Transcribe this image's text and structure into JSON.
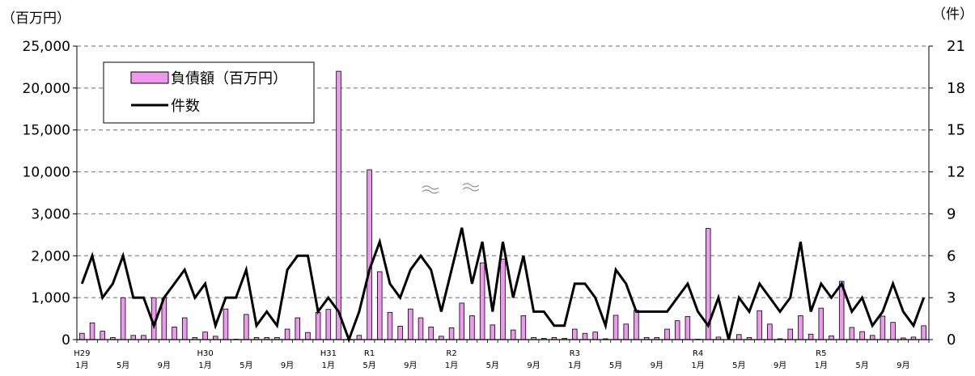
{
  "chart_data": {
    "type": "bar",
    "left_unit": "（百万円）",
    "right_unit": "（件）",
    "left_tick_labels": [
      "0",
      "1,000",
      "2,000",
      "3,000",
      "10,000",
      "15,000",
      "20,000",
      "25,000"
    ],
    "right_tick_labels": [
      "0",
      "3",
      "6",
      "9",
      "12",
      "15",
      "18",
      "21"
    ],
    "right_ylim": [
      0,
      21
    ],
    "left_axis_scale": "broken (0–3,000 then 10,000–25,000 with equal spacing per label)",
    "grid": "dashed horizontal",
    "legend_position": "top-left",
    "x_tick_labels": [
      {
        "index": 0,
        "era": "H29",
        "month": "1月"
      },
      {
        "index": 4,
        "month": "5月"
      },
      {
        "index": 8,
        "month": "9月"
      },
      {
        "index": 12,
        "era": "H30",
        "month": "1月"
      },
      {
        "index": 16,
        "month": "5月"
      },
      {
        "index": 20,
        "month": "9月"
      },
      {
        "index": 24,
        "era": "H31",
        "month": "1月"
      },
      {
        "index": 28,
        "era": "R1",
        "month": "5月"
      },
      {
        "index": 32,
        "month": "9月"
      },
      {
        "index": 36,
        "era": "R2",
        "month": "1月"
      },
      {
        "index": 40,
        "month": "5月"
      },
      {
        "index": 44,
        "month": "9月"
      },
      {
        "index": 48,
        "era": "R3",
        "month": "1月"
      },
      {
        "index": 52,
        "month": "5月"
      },
      {
        "index": 56,
        "month": "9月"
      },
      {
        "index": 60,
        "era": "R4",
        "month": "1月"
      },
      {
        "index": 64,
        "month": "5月"
      },
      {
        "index": 68,
        "month": "9月"
      },
      {
        "index": 72,
        "era": "R5",
        "month": "1月"
      },
      {
        "index": 76,
        "month": "5月"
      },
      {
        "index": 80,
        "month": "9月"
      }
    ],
    "series": [
      {
        "name": "負債額（百万円）",
        "type": "bar",
        "color": "#ee99ee",
        "axis": "left",
        "values": [
          150,
          400,
          200,
          50,
          1000,
          100,
          100,
          1000,
          1000,
          300,
          520,
          50,
          180,
          80,
          730,
          10,
          600,
          50,
          50,
          50,
          250,
          520,
          170,
          650,
          720,
          22000,
          10,
          100,
          10250,
          1620,
          650,
          320,
          730,
          520,
          300,
          80,
          280,
          870,
          570,
          1830,
          350,
          1920,
          230,
          570,
          50,
          30,
          50,
          30,
          250,
          150,
          180,
          20,
          580,
          370,
          700,
          50,
          50,
          250,
          450,
          550,
          10,
          2650,
          60,
          0,
          120,
          50,
          690,
          370,
          20,
          250,
          570,
          130,
          750,
          90,
          1390,
          290,
          190,
          100,
          560,
          410,
          40,
          60,
          330
        ]
      },
      {
        "name": "件数",
        "type": "line",
        "color": "#000000",
        "axis": "right",
        "values": [
          4,
          6,
          3,
          4,
          6,
          3,
          3,
          1,
          3,
          4,
          5,
          3,
          4,
          1,
          3,
          3,
          5,
          1,
          2,
          1,
          5,
          6,
          6,
          2,
          3,
          2,
          0,
          2,
          5,
          7,
          4,
          3,
          5,
          6,
          5,
          2,
          5,
          8,
          4,
          7,
          2,
          7,
          3,
          6,
          2,
          2,
          1,
          1,
          4,
          4,
          3,
          1,
          5,
          4,
          2,
          2,
          2,
          2,
          3,
          4,
          2,
          1,
          3,
          0,
          3,
          2,
          4,
          3,
          2,
          3,
          7,
          2,
          4,
          3,
          4,
          2,
          3,
          1,
          2,
          4,
          2,
          1,
          3
        ]
      }
    ]
  }
}
